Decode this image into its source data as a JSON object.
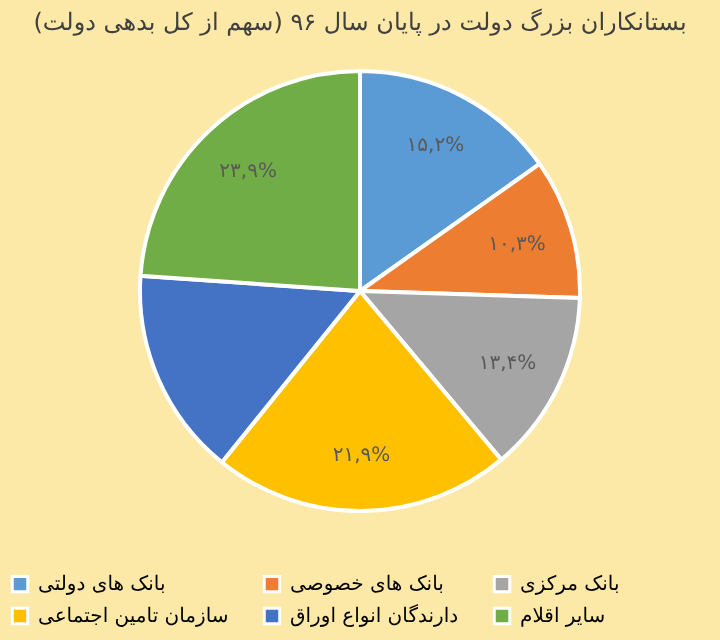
{
  "chart_data": {
    "type": "pie",
    "title": "بستانکاران بزرگ دولت در پایان سال ۹۶ (سهم از کل بدهی دولت)",
    "categories": [
      "بانک های دولتی",
      "بانک های خصوصی",
      "بانک مرکزی",
      "سازمان تامین اجتماعی",
      "دارندگان انواع اوراق",
      "سایر اقلام"
    ],
    "values": [
      15.2,
      10.3,
      13.4,
      21.9,
      15.3,
      23.9
    ],
    "value_labels": [
      "۱۵,۲%",
      "۱۰,۳%",
      "۱۳,۴%",
      "۲۱,۹%",
      null,
      "۲۳,۹%"
    ],
    "colors": [
      "#5b9bd5",
      "#ed7d31",
      "#a5a5a5",
      "#ffc000",
      "#4472c4",
      "#70ad47"
    ],
    "legend": "bottom"
  }
}
